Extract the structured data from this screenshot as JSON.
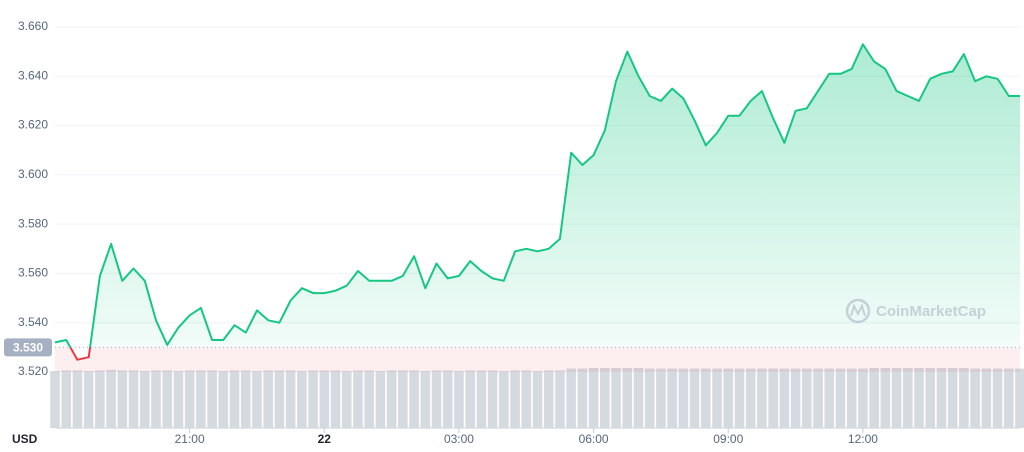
{
  "chart_data": {
    "type": "line",
    "currency": "USD",
    "watermark": "CoinMarketCap",
    "color": "#16c784",
    "below_color": "#ea3943",
    "grid": true,
    "x": [
      18,
      18.25,
      18.5,
      18.75,
      19,
      19.25,
      19.5,
      19.75,
      20,
      20.25,
      20.5,
      20.75,
      21,
      21.25,
      21.5,
      21.75,
      22,
      22.25,
      22.5,
      22.75,
      23,
      23.25,
      23.5,
      23.75,
      24,
      24.25,
      24.5,
      24.75,
      25,
      25.25,
      25.5,
      25.75,
      26,
      26.25,
      26.5,
      26.75,
      27,
      27.25,
      27.5,
      27.75,
      28,
      28.25,
      28.5,
      28.75,
      29,
      29.25,
      29.5,
      29.75,
      30,
      30.25,
      30.5,
      30.75,
      31,
      31.25,
      31.5,
      31.75,
      32,
      32.25,
      32.5,
      32.75,
      33,
      33.25,
      33.5,
      33.75,
      34,
      34.25,
      34.5,
      34.75,
      35,
      35.25,
      35.5,
      35.75,
      36,
      36.25,
      36.5,
      36.75,
      37,
      37.25,
      37.5,
      37.75,
      38,
      38.25,
      38.5,
      38.75,
      39,
      39.25,
      39.5
    ],
    "values": [
      3.532,
      3.533,
      3.525,
      3.526,
      3.559,
      3.572,
      3.557,
      3.562,
      3.557,
      3.541,
      3.531,
      3.538,
      3.543,
      3.546,
      3.533,
      3.533,
      3.539,
      3.536,
      3.545,
      3.541,
      3.54,
      3.549,
      3.554,
      3.552,
      3.552,
      3.553,
      3.555,
      3.561,
      3.557,
      3.557,
      3.557,
      3.559,
      3.567,
      3.554,
      3.564,
      3.558,
      3.559,
      3.565,
      3.561,
      3.558,
      3.557,
      3.569,
      3.57,
      3.569,
      3.57,
      3.574,
      3.609,
      3.604,
      3.608,
      3.618,
      3.638,
      3.65,
      3.64,
      3.632,
      3.63,
      3.635,
      3.631,
      3.622,
      3.612,
      3.617,
      3.624,
      3.624,
      3.63,
      3.634,
      3.623,
      3.613,
      3.626,
      3.627,
      3.634,
      3.641,
      3.641,
      3.643,
      3.653,
      3.646,
      3.643,
      3.634,
      3.632,
      3.63,
      3.639,
      3.641,
      3.642,
      3.649,
      3.638,
      3.64,
      3.639,
      3.632,
      3.632
    ],
    "volume": [
      95,
      96,
      96,
      95,
      96,
      97,
      96,
      96,
      95,
      96,
      96,
      95,
      96,
      96,
      96,
      95,
      96,
      96,
      95,
      96,
      96,
      96,
      95,
      96,
      96,
      96,
      95,
      96,
      96,
      95,
      96,
      96,
      96,
      95,
      96,
      96,
      95,
      96,
      96,
      96,
      95,
      96,
      96,
      95,
      96,
      96,
      99,
      99,
      100,
      100,
      100,
      100,
      100,
      99,
      99,
      99,
      99,
      99,
      99,
      99,
      99,
      99,
      99,
      99,
      99,
      99,
      99,
      99,
      99,
      99,
      99,
      99,
      99,
      100,
      100,
      100,
      100,
      100,
      100,
      100,
      100,
      100,
      99,
      99,
      99,
      99,
      99
    ],
    "volume_color": "#d5d9e0",
    "xlim": [
      18,
      39.5
    ],
    "xticks": [
      {
        "value": 21,
        "label": "21:00"
      },
      {
        "value": 24,
        "label": "22"
      },
      {
        "value": 27,
        "label": "03:00"
      },
      {
        "value": 30,
        "label": "06:00"
      },
      {
        "value": 33,
        "label": "09:00"
      },
      {
        "value": 36,
        "label": "12:00"
      }
    ],
    "ylim": [
      3.52,
      3.66
    ],
    "yticks": [
      {
        "value": 3.52,
        "label": "3.520"
      },
      {
        "value": 3.54,
        "label": "3.540"
      },
      {
        "value": 3.56,
        "label": "3.560"
      },
      {
        "value": 3.58,
        "label": "3.580"
      },
      {
        "value": 3.6,
        "label": "3.600"
      },
      {
        "value": 3.62,
        "label": "3.620"
      },
      {
        "value": 3.64,
        "label": "3.640"
      },
      {
        "value": 3.66,
        "label": "3.660"
      }
    ],
    "baseline": {
      "value": 3.53,
      "label": "3.530"
    }
  }
}
